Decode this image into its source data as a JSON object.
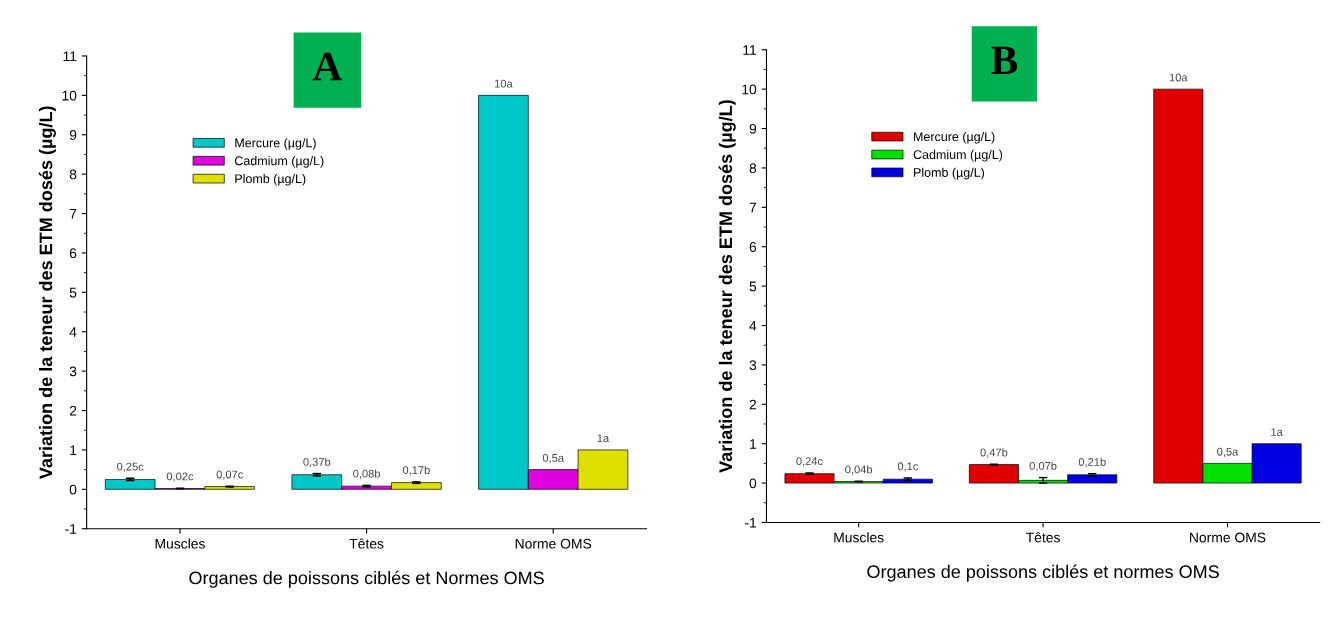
{
  "chart_data": [
    {
      "type": "bar",
      "title": "A",
      "xlabel": "Organes de poissons ciblés et Normes OMS",
      "ylabel": "Variation de la teneur des ETM dosés (µg/L)",
      "categories": [
        "Muscles",
        "Têtes",
        "Norme OMS"
      ],
      "ylim": [
        -1,
        11
      ],
      "yticks": [
        -1,
        0,
        1,
        2,
        3,
        4,
        5,
        6,
        7,
        8,
        9,
        10,
        11
      ],
      "legend": "top left",
      "series": [
        {
          "name": "Mercure (µg/L)",
          "color": "#00c8c8",
          "values": [
            0.25,
            0.37,
            10
          ],
          "errors": [
            0.03,
            0.03,
            null
          ],
          "value_labels": [
            "0,25c",
            "0,37b",
            "10a"
          ]
        },
        {
          "name": "Cadmium (µg/L)",
          "color": "#e000e0",
          "values": [
            0.02,
            0.08,
            0.5
          ],
          "errors": [
            0.01,
            0.02,
            null
          ],
          "value_labels": [
            "0,02c",
            "0,08b",
            "0,5a"
          ]
        },
        {
          "name": "Plomb (µg/L)",
          "color": "#e0e000",
          "values": [
            0.07,
            0.17,
            1
          ],
          "errors": [
            0.01,
            0.02,
            null
          ],
          "value_labels": [
            "0,07c",
            "0,17b",
            "1a"
          ]
        }
      ]
    },
    {
      "type": "bar",
      "title": "B",
      "xlabel": "Organes de poissons ciblés et normes OMS",
      "ylabel": "Variation de la teneur des ETM dosés (µg/L)",
      "categories": [
        "Muscles",
        "Têtes",
        "Norme OMS"
      ],
      "ylim": [
        -1,
        11
      ],
      "yticks": [
        -1,
        0,
        1,
        2,
        3,
        4,
        5,
        6,
        7,
        8,
        9,
        10,
        11
      ],
      "legend": "top left",
      "series": [
        {
          "name": "Mercure (µg/L)",
          "color": "#e00000",
          "values": [
            0.24,
            0.47,
            10
          ],
          "errors": [
            0.02,
            0.01,
            null
          ],
          "value_labels": [
            "0,24c",
            "0,47b",
            "10a"
          ]
        },
        {
          "name": "Cadmium (µg/L)",
          "color": "#00e000",
          "values": [
            0.04,
            0.07,
            0.5
          ],
          "errors": [
            0.01,
            0.07,
            null
          ],
          "value_labels": [
            "0,04b",
            "0,07b",
            "0,5a"
          ]
        },
        {
          "name": "Plomb (µg/L)",
          "color": "#0000e0",
          "values": [
            0.1,
            0.21,
            1
          ],
          "errors": [
            0.03,
            0.03,
            null
          ],
          "value_labels": [
            "0,1c",
            "0,21b",
            "1a"
          ]
        }
      ]
    }
  ]
}
